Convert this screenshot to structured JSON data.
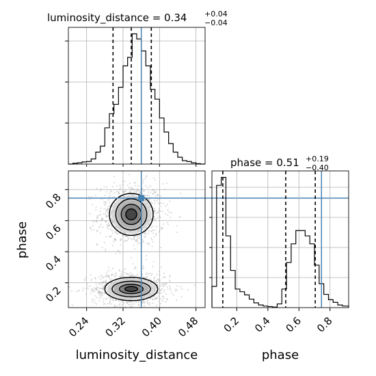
{
  "chart_data": {
    "type": "corner",
    "parameters": [
      "luminosity_distance",
      "phase"
    ],
    "titles": [
      {
        "param": "luminosity_distance",
        "prefix": "luminosity_distance = ",
        "value": "0.34",
        "plus": "+0.04",
        "minus": "−0.04"
      },
      {
        "param": "phase",
        "prefix": "phase = ",
        "value": "0.51",
        "plus": "+0.19",
        "minus": "−0.40"
      }
    ],
    "truth": {
      "luminosity_distance": 0.36,
      "phase": 0.745
    },
    "colors": {
      "truth": "#4682b4",
      "hist": "#000000",
      "quantile": "#000000",
      "grid": "#b0b0b0",
      "contour": "#000000"
    },
    "axes": {
      "luminosity_distance": {
        "range": [
          0.2,
          0.5
        ],
        "ticks": [
          0.24,
          0.32,
          0.4,
          0.48
        ],
        "tick_labels": [
          "0.24",
          "0.32",
          "0.40",
          "0.48"
        ],
        "label": "luminosity_distance"
      },
      "phase": {
        "range": [
          0.04,
          0.92
        ],
        "ticks": [
          0.2,
          0.4,
          0.6,
          0.8
        ],
        "tick_labels": [
          "0.2",
          "0.4",
          "0.6",
          "0.8"
        ],
        "label": "phase"
      }
    },
    "hist_luminosity_distance": {
      "edges": [
        0.2,
        0.21,
        0.22,
        0.23,
        0.24,
        0.25,
        0.26,
        0.27,
        0.28,
        0.29,
        0.3,
        0.31,
        0.32,
        0.33,
        0.34,
        0.35,
        0.36,
        0.37,
        0.38,
        0.39,
        0.4,
        0.41,
        0.42,
        0.43,
        0.44,
        0.45,
        0.46,
        0.47,
        0.48,
        0.49,
        0.5
      ],
      "counts": [
        0,
        2,
        3,
        5,
        6,
        12,
        28,
        42,
        85,
        118,
        140,
        180,
        230,
        250,
        305,
        293,
        265,
        230,
        175,
        152,
        108,
        75,
        48,
        28,
        16,
        8,
        6,
        3,
        1,
        0
      ],
      "quantiles": [
        0.298,
        0.338,
        0.382
      ]
    },
    "hist_phase": {
      "edges": [
        0.04,
        0.07,
        0.1,
        0.13,
        0.16,
        0.19,
        0.22,
        0.25,
        0.28,
        0.31,
        0.34,
        0.37,
        0.4,
        0.43,
        0.46,
        0.49,
        0.52,
        0.55,
        0.58,
        0.61,
        0.64,
        0.67,
        0.7,
        0.73,
        0.76,
        0.79,
        0.82,
        0.85,
        0.88,
        0.92
      ],
      "counts": [
        40,
        230,
        245,
        135,
        70,
        35,
        30,
        24,
        16,
        9,
        5,
        3,
        2,
        1,
        7,
        35,
        85,
        120,
        145,
        145,
        135,
        120,
        80,
        45,
        25,
        15,
        10,
        5,
        3
      ],
      "quantiles": [
        0.11,
        0.515,
        0.705
      ]
    },
    "density_2d": {
      "clusters": [
        {
          "center": [
            0.338,
            0.64
          ],
          "contours": [
            [
              0.012,
              0.035
            ],
            [
              0.022,
              0.065
            ],
            [
              0.034,
              0.1
            ],
            [
              0.048,
              0.135
            ]
          ]
        },
        {
          "center": [
            0.338,
            0.16
          ],
          "contours": [
            [
              0.014,
              0.016
            ],
            [
              0.026,
              0.03
            ],
            [
              0.042,
              0.05
            ],
            [
              0.058,
              0.075
            ]
          ]
        }
      ]
    }
  }
}
